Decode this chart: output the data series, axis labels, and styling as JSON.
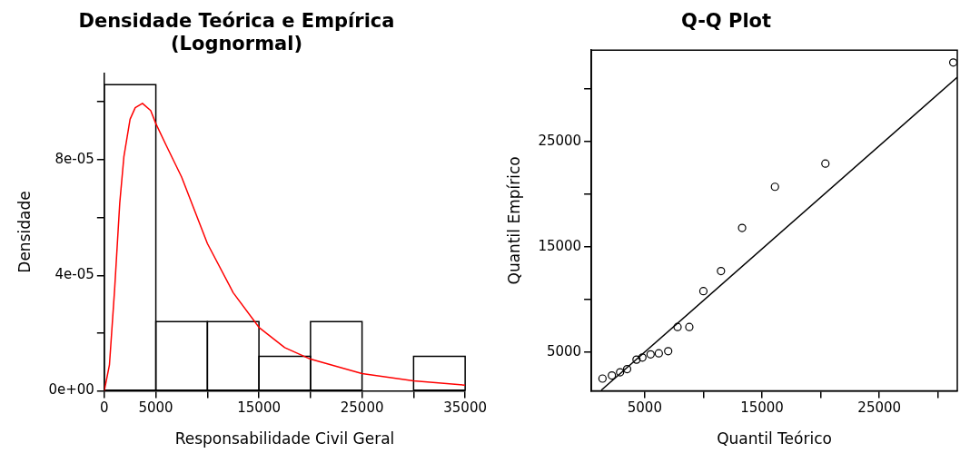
{
  "chart_data": [
    {
      "type": "histogram",
      "title": "Densidade Teórica e Empírica\n(Lognormal)",
      "xlabel": "Responsabilidade Civil Geral",
      "ylabel": "Densidade",
      "bins": [
        0,
        5000,
        10000,
        15000,
        20000,
        25000,
        30000,
        35000
      ],
      "values": [
        0.000106,
        2.4e-05,
        2.4e-05,
        1.2e-05,
        2.4e-05,
        0,
        1.2e-05
      ],
      "color": "#000000",
      "series": [
        {
          "type": "line",
          "color": "#ff0000",
          "x": [
            0,
            500,
            1000,
            1500,
            1900,
            2500,
            3000,
            3700,
            4500,
            5000,
            6000,
            7500,
            10000,
            12500,
            15000,
            17500,
            20000,
            25000,
            30000,
            35000
          ],
          "values": [
            0,
            9e-06,
            3.5e-05,
            6.5e-05,
            8.1e-05,
            9.4e-05,
            9.8e-05,
            9.95e-05,
            9.7e-05,
            9.25e-05,
            8.5e-05,
            7.4e-05,
            5.1e-05,
            3.4e-05,
            2.2e-05,
            1.5e-05,
            1.1e-05,
            6e-06,
            3.5e-06,
            2e-06
          ]
        }
      ],
      "xlim": [
        0,
        35000
      ],
      "xticks": [
        0,
        5000,
        {
          "value": 10000,
          "label": null
        },
        15000,
        {
          "value": 20000,
          "label": null
        },
        25000,
        {
          "value": 30000,
          "label": null
        },
        35000
      ],
      "ylim": [
        0,
        0.00011
      ],
      "yticks": [
        {
          "value": 0,
          "label": "0e+00"
        },
        {
          "value": 2e-05,
          "label": null
        },
        {
          "value": 4e-05,
          "label": "4e-05"
        },
        {
          "value": 6e-05,
          "label": null
        },
        {
          "value": 8e-05,
          "label": "8e-05"
        },
        {
          "value": 0.0001,
          "label": null
        }
      ],
      "grid": false,
      "legend": false
    },
    {
      "type": "scatter",
      "title": "Q-Q Plot",
      "xlabel": "Quantil Teórico",
      "ylabel": "Quantil Empírico",
      "series": [
        {
          "type": "scatter",
          "marker": "circle",
          "color": "#000000",
          "x": [
            1400,
            2200,
            2900,
            3500,
            4300,
            4800,
            5500,
            6200,
            7000,
            7800,
            8800,
            10000,
            11500,
            13300,
            16100,
            20400,
            31300
          ],
          "values": [
            2500,
            2800,
            3100,
            3400,
            4300,
            4500,
            4800,
            4900,
            5100,
            7400,
            7400,
            10800,
            12700,
            16800,
            20700,
            22900,
            32500
          ]
        },
        {
          "type": "line",
          "color": "#000000",
          "x": [
            1300,
            31643
          ],
          "values": [
            1400,
            31100
          ]
        }
      ],
      "xlim": [
        452,
        31643
      ],
      "xticks": [
        5000,
        {
          "value": 10000,
          "label": null
        },
        15000,
        {
          "value": 20000,
          "label": null
        },
        25000,
        {
          "value": 30000,
          "label": null
        }
      ],
      "ylim": [
        1330,
        33670
      ],
      "yticks": [
        5000,
        {
          "value": 10000,
          "label": null
        },
        15000,
        {
          "value": 20000,
          "label": null
        },
        25000,
        {
          "value": 30000,
          "label": null
        }
      ],
      "grid": false,
      "legend": false
    }
  ]
}
